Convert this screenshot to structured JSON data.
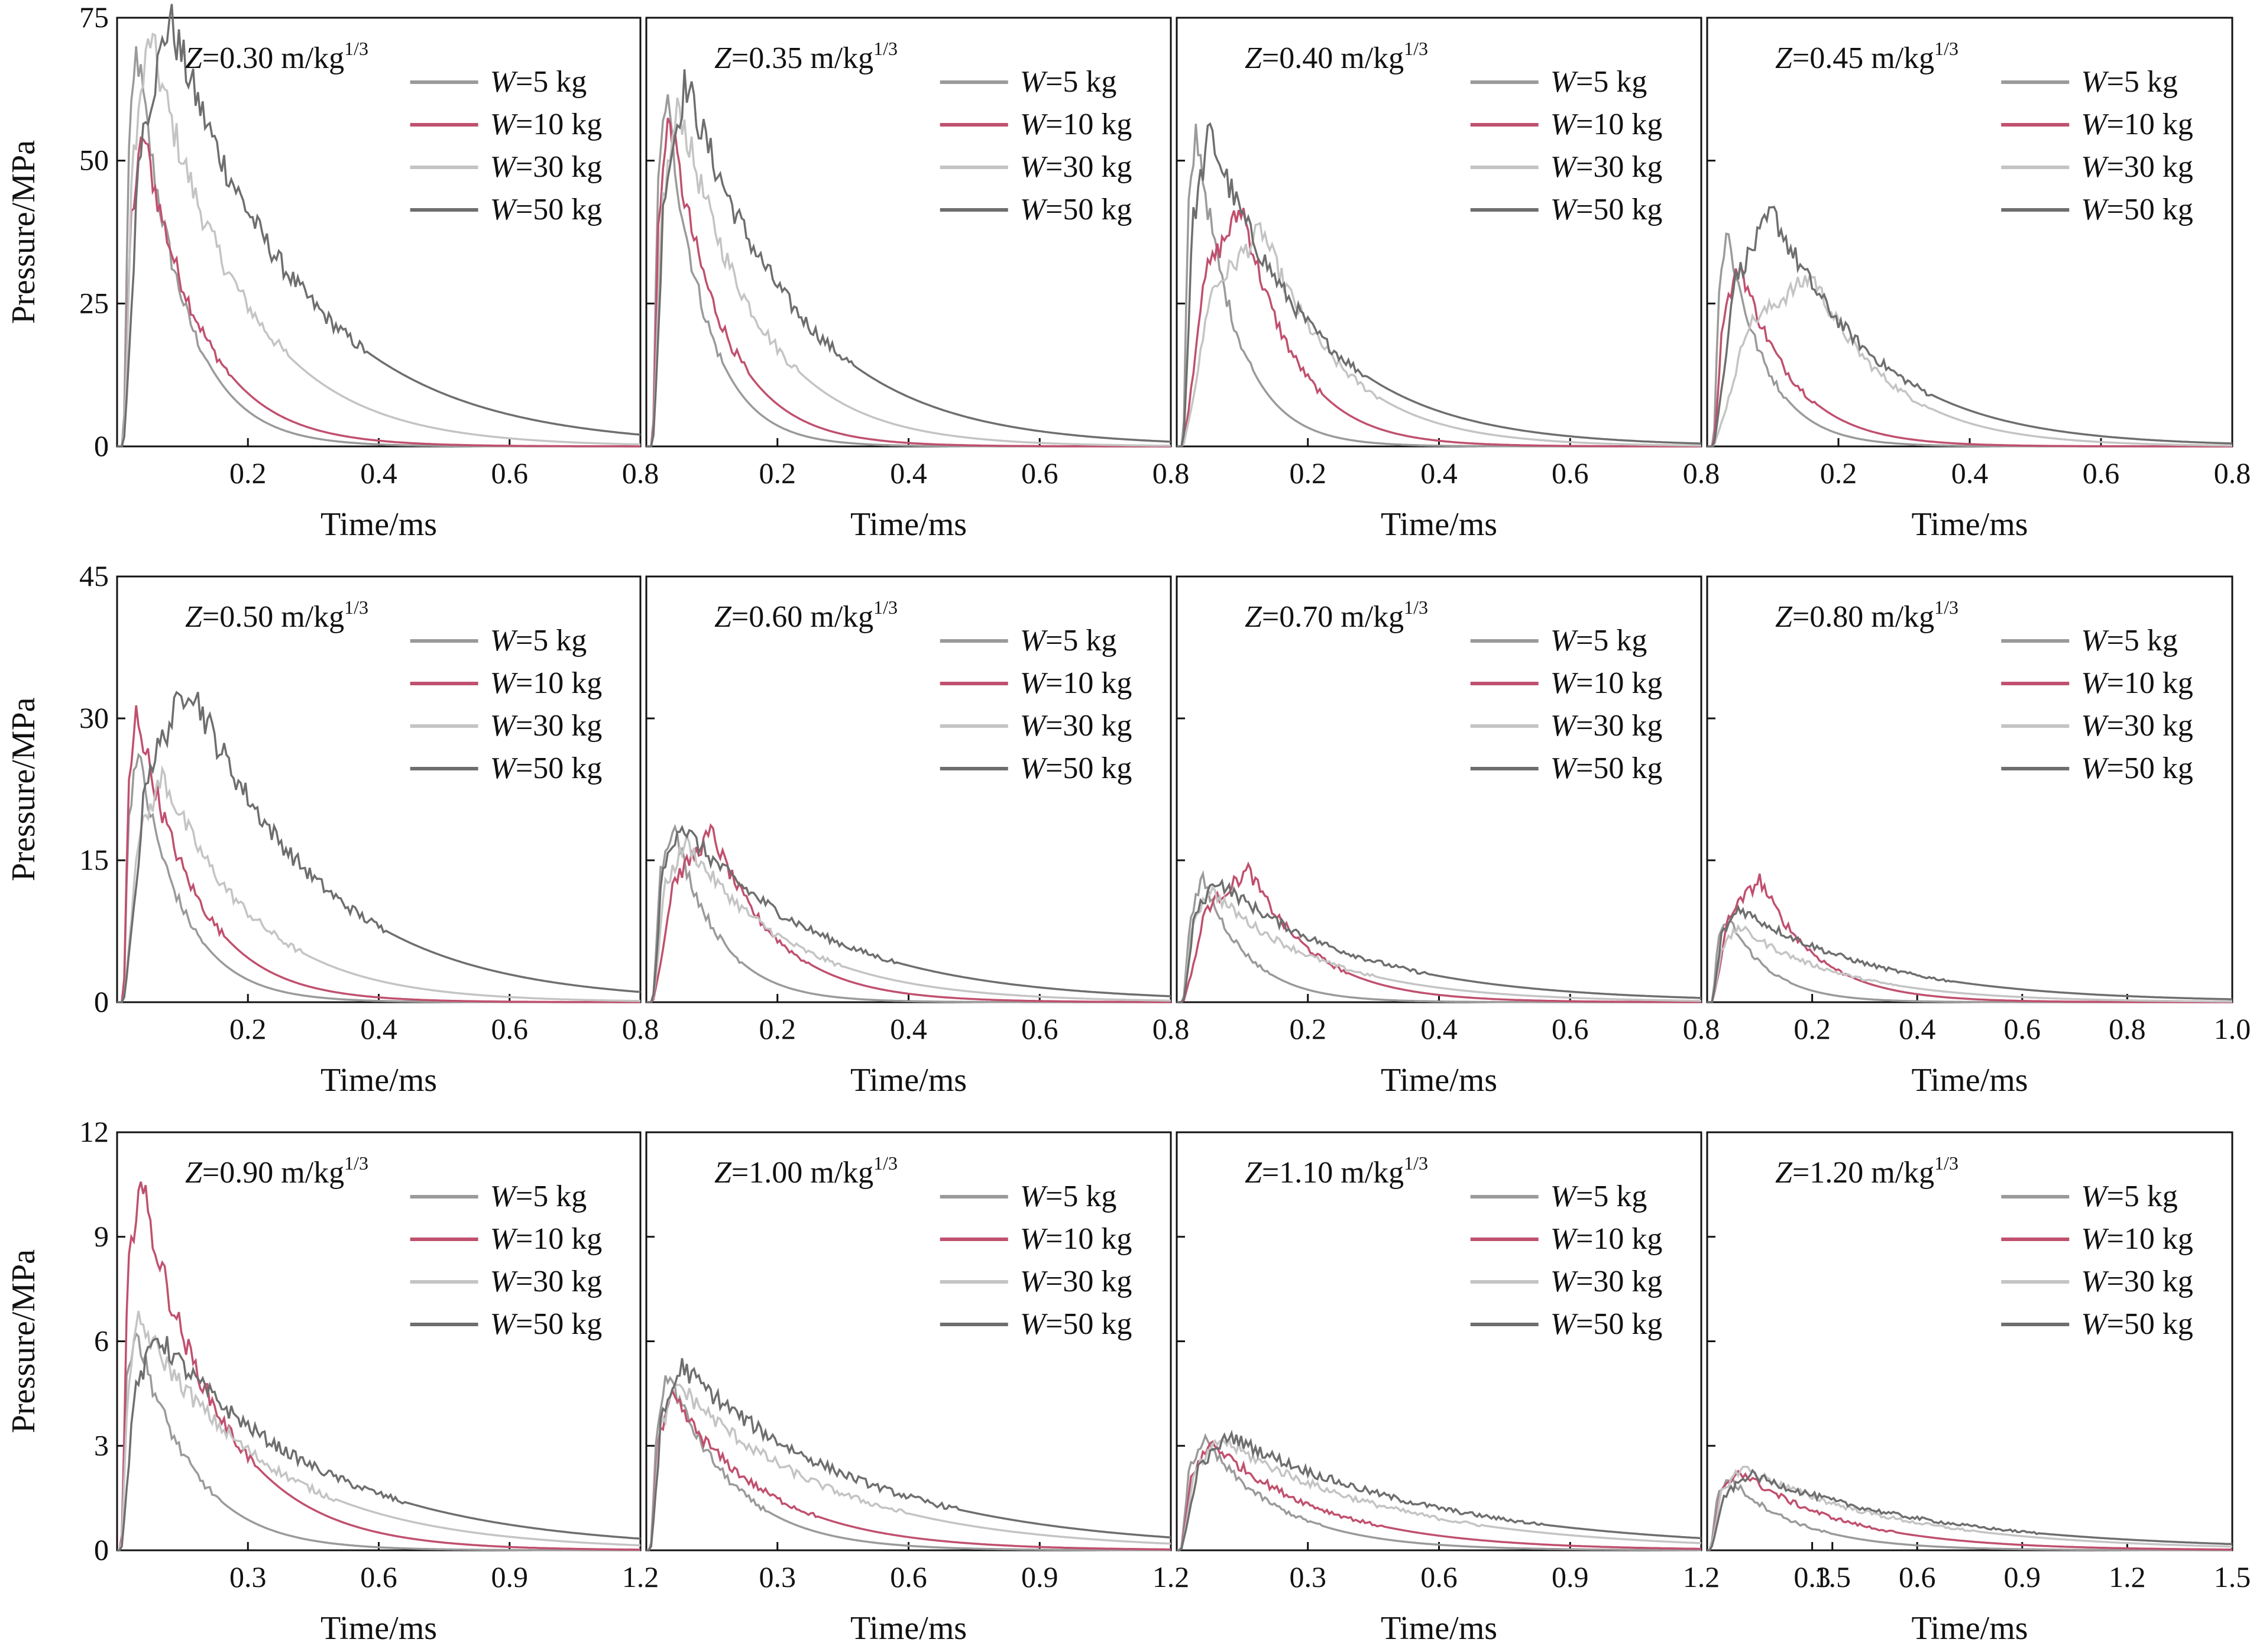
{
  "chart_data": {
    "type": "line",
    "title": "",
    "ylabel": "Pressure/MPa",
    "xlabel": "Time/ms",
    "legend_placement": "top-right",
    "legend": [
      {
        "var": "W",
        "text": "=5 kg",
        "color": "#9a9a9a"
      },
      {
        "var": "W",
        "text": "=10 kg",
        "color": "#c0506e"
      },
      {
        "var": "W",
        "text": "=30 kg",
        "color": "#c4c4c4"
      },
      {
        "var": "W",
        "text": "=50 kg",
        "color": "#6e6e6e"
      }
    ],
    "rows": [
      {
        "ylim": [
          0,
          75
        ],
        "yticks": [
          "0",
          "25",
          "50",
          "75"
        ],
        "xlim": [
          0,
          0.8
        ],
        "xticks": [
          "0.2",
          "0.4",
          "0.6",
          "0.8"
        ],
        "panels": [
          {
            "z_var": "Z",
            "z_text": "=0.30 m/kg",
            "z_sup": "1/3",
            "peaks": [
              70,
              55,
              72,
              75
            ],
            "peak_t": [
              0.03,
              0.04,
              0.05,
              0.08
            ],
            "decay": [
              0.07,
              0.09,
              0.14,
              0.2
            ]
          },
          {
            "z_var": "Z",
            "z_text": "=0.35 m/kg",
            "z_sup": "1/3",
            "peaks": [
              62,
              58,
              60,
              64
            ],
            "peak_t": [
              0.03,
              0.035,
              0.05,
              0.06
            ],
            "decay": [
              0.06,
              0.08,
              0.12,
              0.17
            ]
          },
          {
            "z_var": "Z",
            "z_text": "=0.40 m/kg",
            "z_sup": "1/3",
            "peaks": [
              56,
              42,
              38,
              55
            ],
            "peak_t": [
              0.03,
              0.1,
              0.13,
              0.05
            ],
            "decay": [
              0.06,
              0.08,
              0.12,
              0.16
            ]
          },
          {
            "z_var": "Z",
            "z_text": "=0.45 m/kg",
            "z_sup": "1/3",
            "peaks": [
              38,
              32,
              30,
              41
            ],
            "peak_t": [
              0.03,
              0.05,
              0.16,
              0.1
            ],
            "decay": [
              0.06,
              0.08,
              0.12,
              0.16
            ]
          }
        ]
      },
      {
        "ylim": [
          0,
          45
        ],
        "yticks": [
          "0",
          "15",
          "30",
          "45"
        ],
        "xlim": [
          0,
          0.8
        ],
        "xticks": [
          "0.2",
          "0.4",
          "0.6",
          "0.8"
        ],
        "panels": [
          {
            "z_var": "Z",
            "z_text": "=0.50 m/kg",
            "z_sup": "1/3",
            "peaks": [
              27,
              31,
              24,
              34
            ],
            "peak_t": [
              0.03,
              0.03,
              0.07,
              0.11
            ],
            "decay": [
              0.07,
              0.09,
              0.14,
              0.2
            ]
          },
          {
            "z_var": "Z",
            "z_text": "=0.60 m/kg",
            "z_sup": "1/3",
            "peaks": [
              19,
              18,
              17,
              19
            ],
            "peak_t": [
              0.04,
              0.1,
              0.06,
              0.05
            ],
            "decay": [
              0.07,
              0.1,
              0.16,
              0.22
            ]
          },
          {
            "z_var": "Z",
            "z_text": "=0.70 m/kg",
            "z_sup": "1/3",
            "peaks": [
              13,
              14,
              12,
              13
            ],
            "peak_t": [
              0.04,
              0.11,
              0.05,
              0.06
            ],
            "decay": [
              0.07,
              0.1,
              0.17,
              0.22
            ]
          },
          {
            "z_var": "Z",
            "z_text": "=0.80 m/kg",
            "z_sup": "1/3",
            "peaks": [
              9,
              13,
              8,
              10
            ],
            "peak_t": [
              0.04,
              0.1,
              0.06,
              0.06
            ],
            "decay": [
              0.08,
              0.11,
              0.2,
              0.27
            ],
            "xlim": [
              0,
              1.0
            ],
            "xticks": [
              "0.2",
              "0.4",
              "0.6",
              "0.8",
              "1.0"
            ]
          }
        ]
      },
      {
        "ylim": [
          0,
          12
        ],
        "yticks": [
          "0",
          "3",
          "6",
          "9",
          "12"
        ],
        "xlim": [
          0,
          1.2
        ],
        "xticks": [
          "0.3",
          "0.6",
          "0.9",
          "1.2"
        ],
        "panels": [
          {
            "z_var": "Z",
            "z_text": "=0.90 m/kg",
            "z_sup": "1/3",
            "peaks": [
              6.5,
              10.8,
              6.6,
              6.2
            ],
            "peak_t": [
              0.04,
              0.05,
              0.05,
              0.09
            ],
            "decay": [
              0.13,
              0.18,
              0.3,
              0.38
            ]
          },
          {
            "z_var": "Z",
            "z_text": "=1.00 m/kg",
            "z_sup": "1/3",
            "peaks": [
              5.1,
              4.4,
              4.8,
              5.3
            ],
            "peak_t": [
              0.05,
              0.06,
              0.07,
              0.08
            ],
            "decay": [
              0.15,
              0.22,
              0.35,
              0.42
            ]
          },
          {
            "z_var": "Z",
            "z_text": "=1.10 m/kg",
            "z_sup": "1/3",
            "peaks": [
              3.2,
              3.1,
              3.2,
              3.3
            ],
            "peak_t": [
              0.06,
              0.08,
              0.1,
              0.12
            ],
            "decay": [
              0.18,
              0.26,
              0.4,
              0.48
            ],
            "xticks": [
              "0.3",
              "0.6",
              "0.9",
              "1.2",
              "1.5"
            ]
          },
          {
            "z_var": "Z",
            "z_text": "=1.20 m/kg",
            "z_sup": "1/3",
            "peaks": [
              2.1,
              2.3,
              2.4,
              2.2
            ],
            "peak_t": [
              0.06,
              0.09,
              0.1,
              0.12
            ],
            "decay": [
              0.2,
              0.3,
              0.45,
              0.55
            ],
            "xlim": [
              0,
              1.5
            ],
            "xticks": [
              "0.3",
              "0.6",
              "0.9",
              "1.2",
              "1.5"
            ]
          }
        ]
      }
    ]
  }
}
